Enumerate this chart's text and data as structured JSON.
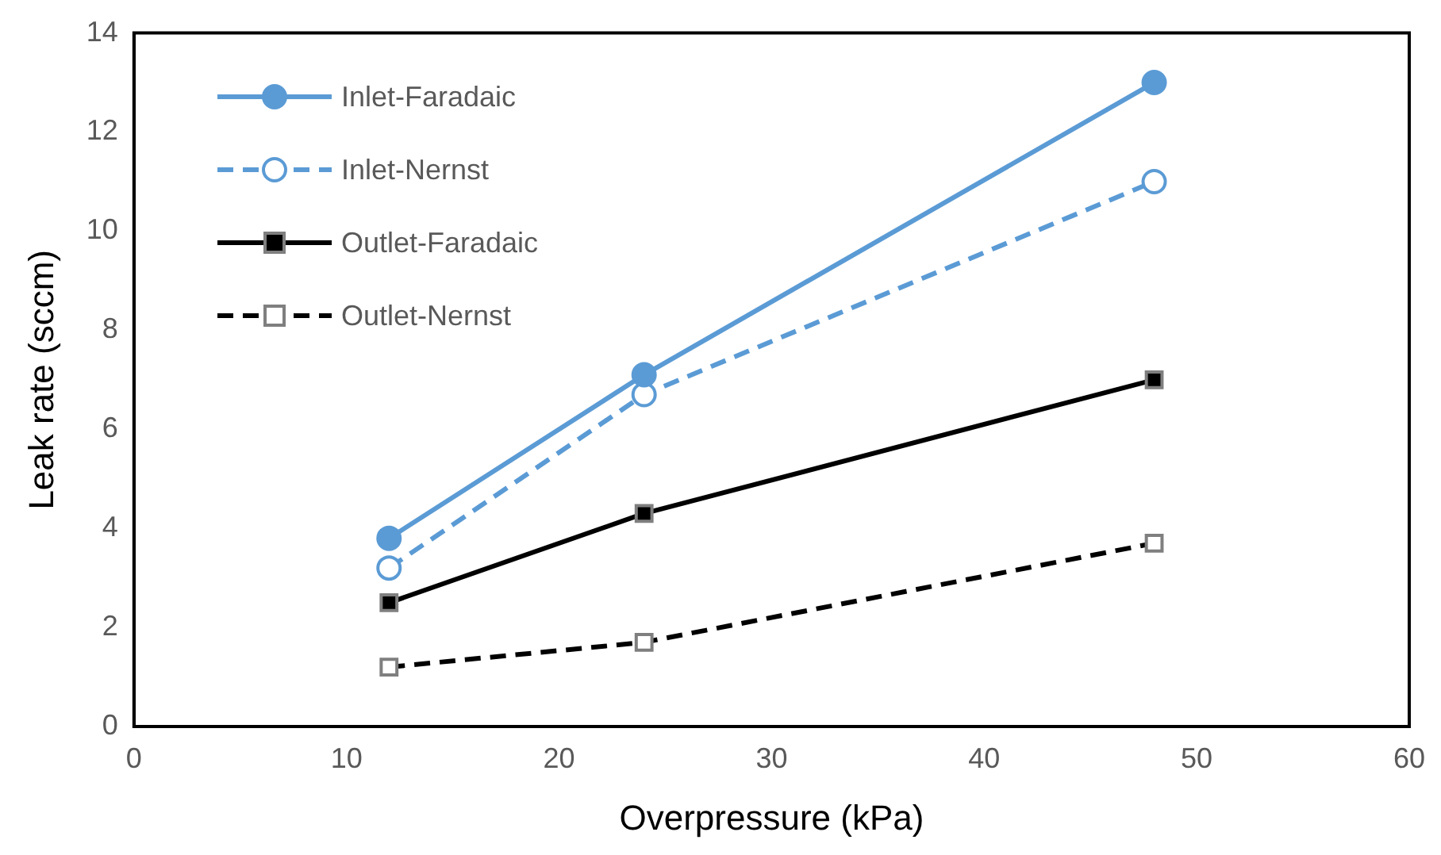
{
  "chart_data": {
    "type": "line",
    "xlabel": "Overpressure (kPa)",
    "ylabel": "Leak rate (sccm)",
    "x": [
      12,
      24,
      48
    ],
    "xlim": [
      0,
      60
    ],
    "xticks": [
      0,
      10,
      20,
      30,
      40,
      50,
      60
    ],
    "ylim": [
      0,
      14
    ],
    "yticks": [
      0,
      2,
      4,
      6,
      8,
      10,
      12,
      14
    ],
    "grid": false,
    "legend": "top left",
    "series": [
      {
        "name": "Inlet-Faradaic",
        "color": "#5b9bd5",
        "values": [
          3.8,
          7.1,
          13.0
        ],
        "marker": "circle",
        "line_style": "solid"
      },
      {
        "name": "Inlet-Nernst",
        "color": "#5b9bd5",
        "values": [
          3.2,
          6.7,
          11.0
        ],
        "marker": "circle",
        "line_style": "dashed"
      },
      {
        "name": "Outlet-Faradaic",
        "color": "#000000",
        "values": [
          2.5,
          4.3,
          7.0
        ],
        "marker": "square",
        "line_style": "solid"
      },
      {
        "name": "Outlet-Nernst",
        "color": "#000000",
        "values": [
          1.2,
          1.7,
          3.7
        ],
        "marker": "square",
        "line_style": "dashed"
      }
    ]
  }
}
